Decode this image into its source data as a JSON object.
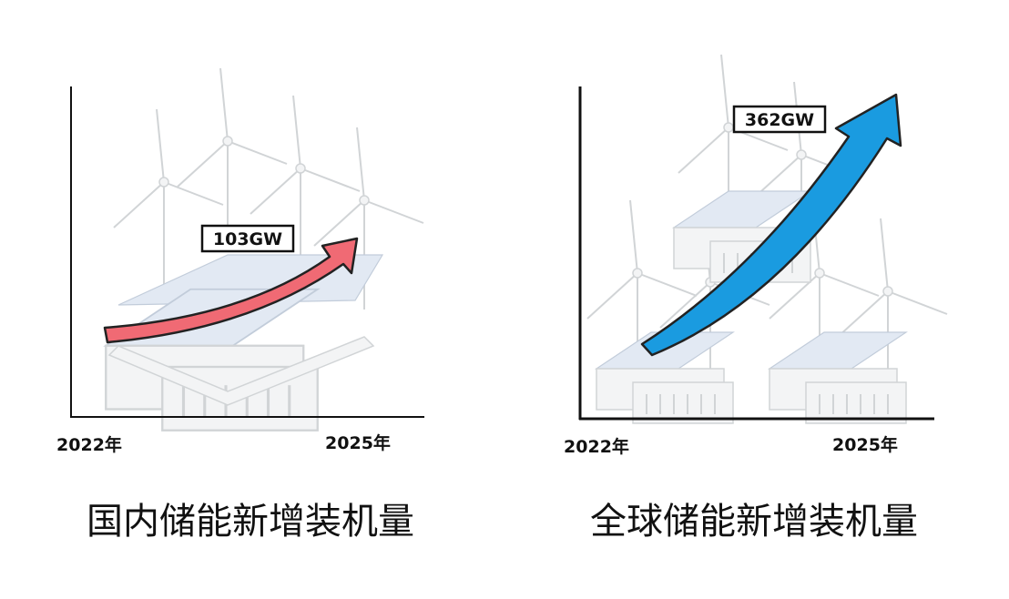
{
  "panels": [
    {
      "title": "国内储能新增装机量",
      "start_label": "2022年",
      "end_label": "2025年",
      "value_label": "103GW"
    },
    {
      "title": "全球储能新增装机量",
      "start_label": "2022年",
      "end_label": "2025年",
      "value_label": "362GW"
    }
  ]
}
